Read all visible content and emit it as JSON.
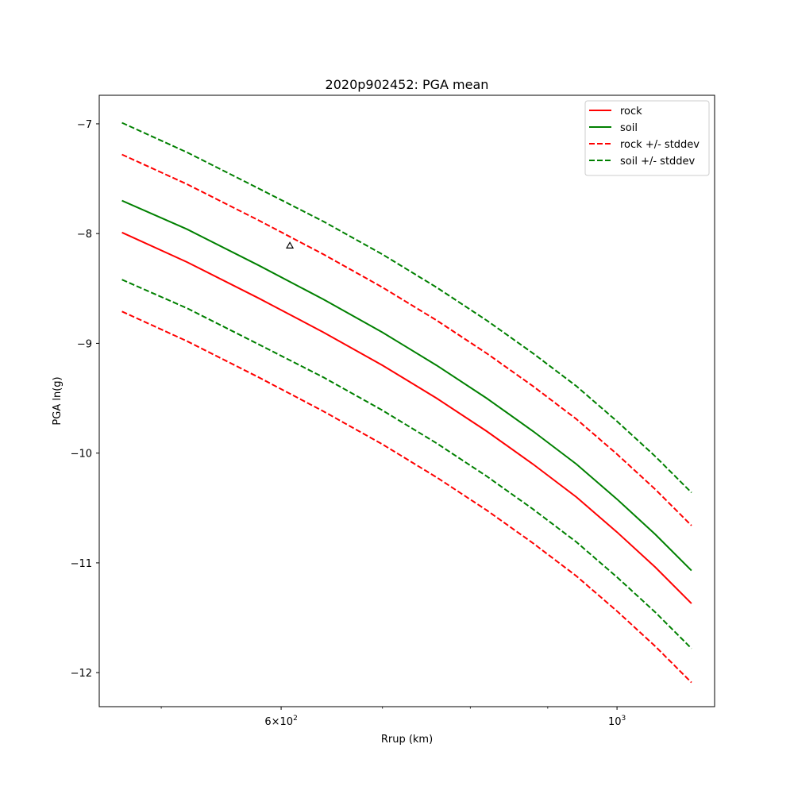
{
  "chart_data": {
    "type": "line",
    "title": "2020p902452: PGA mean",
    "xlabel": "Rrup (km)",
    "ylabel": "PGA ln(g)",
    "xscale": "log",
    "xlim": [
      455,
      1160
    ],
    "ylim": [
      -12.31,
      -6.74
    ],
    "x_major_ticks": [
      {
        "value": 600,
        "base": "6×10",
        "exp": "2"
      },
      {
        "value": 1000,
        "base": "10",
        "exp": "3"
      }
    ],
    "x_minor_ticks": [
      500,
      700,
      800,
      900
    ],
    "y_ticks": [
      {
        "value": -7,
        "label": "−7"
      },
      {
        "value": -8,
        "label": "−8"
      },
      {
        "value": -9,
        "label": "−9"
      },
      {
        "value": -10,
        "label": "−10"
      },
      {
        "value": -11,
        "label": "−11"
      },
      {
        "value": -12,
        "label": "−12"
      }
    ],
    "grid": false,
    "legend_position": "top-right",
    "x": [
      471,
      520,
      580,
      640,
      700,
      760,
      820,
      880,
      940,
      1000,
      1060,
      1120
    ],
    "series": [
      {
        "name": "rock",
        "color": "#ff0000",
        "style": "solid",
        "values": [
          -7.99,
          -8.26,
          -8.59,
          -8.9,
          -9.2,
          -9.5,
          -9.8,
          -10.1,
          -10.4,
          -10.72,
          -11.04,
          -11.37
        ]
      },
      {
        "name": "soil",
        "color": "#008000",
        "style": "solid",
        "values": [
          -7.7,
          -7.96,
          -8.29,
          -8.6,
          -8.9,
          -9.2,
          -9.5,
          -9.8,
          -10.1,
          -10.42,
          -10.74,
          -11.07
        ]
      },
      {
        "name": "rock +/- stddev",
        "color": "#ff0000",
        "style": "dashed",
        "values": [
          -7.28,
          -7.55,
          -7.88,
          -8.19,
          -8.49,
          -8.79,
          -9.09,
          -9.39,
          -9.69,
          -10.01,
          -10.33,
          -10.66
        ]
      },
      {
        "name": "rock +/- stddev",
        "color": "#ff0000",
        "style": "dashed",
        "in_legend": false,
        "values": [
          -8.71,
          -8.98,
          -9.31,
          -9.62,
          -9.92,
          -10.22,
          -10.52,
          -10.82,
          -11.12,
          -11.44,
          -11.76,
          -12.09
        ]
      },
      {
        "name": "soil +/- stddev",
        "color": "#008000",
        "style": "dashed",
        "values": [
          -6.99,
          -7.26,
          -7.59,
          -7.89,
          -8.19,
          -8.49,
          -8.79,
          -9.09,
          -9.39,
          -9.71,
          -10.03,
          -10.36
        ]
      },
      {
        "name": "soil +/- stddev",
        "color": "#008000",
        "style": "dashed",
        "in_legend": false,
        "values": [
          -8.42,
          -8.68,
          -9.01,
          -9.31,
          -9.61,
          -9.91,
          -10.21,
          -10.51,
          -10.81,
          -11.13,
          -11.45,
          -11.78
        ]
      }
    ],
    "markers": [
      {
        "x": 608,
        "y": -8.11,
        "symbol": "triangle"
      }
    ]
  }
}
